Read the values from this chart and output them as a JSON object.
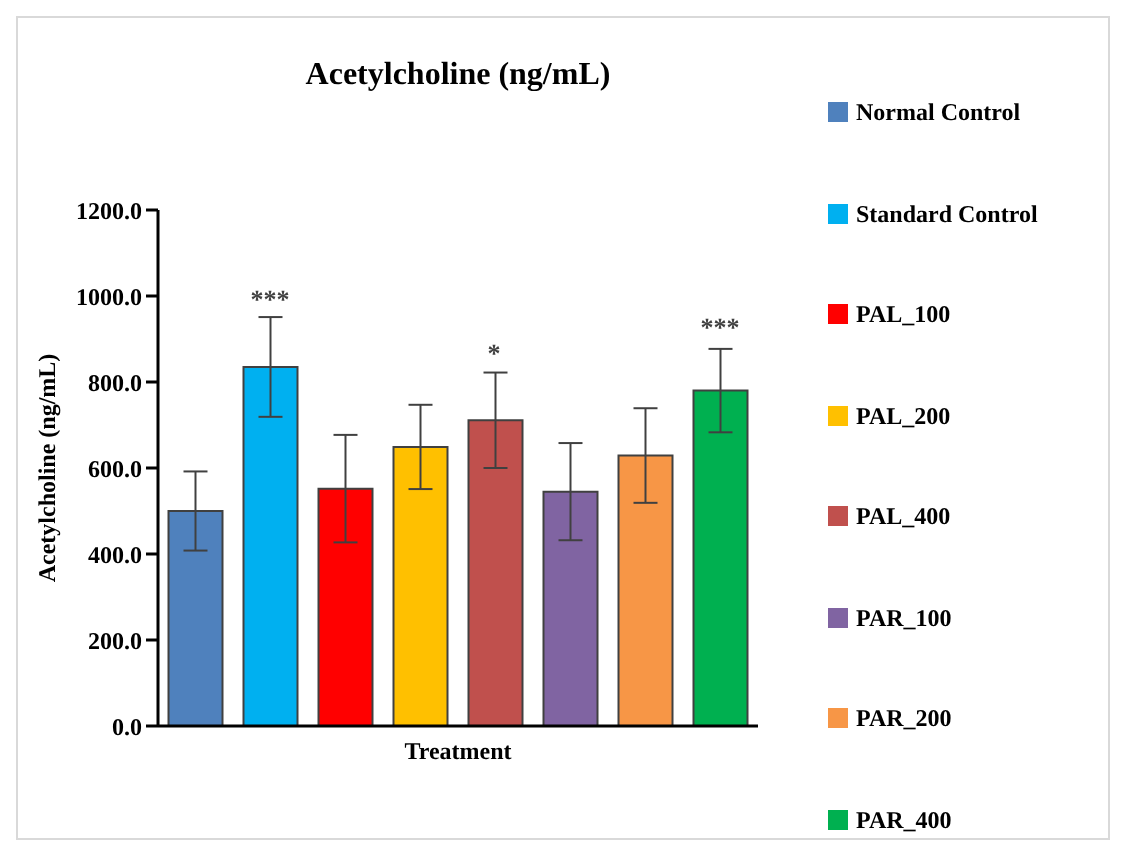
{
  "chart_data": {
    "type": "bar",
    "title": "Acetylcholine  (ng/mL)",
    "xlabel": "Treatment",
    "ylabel": "Acetylcholine (ng/mL)",
    "categories": [
      null,
      null,
      null,
      null,
      null,
      null,
      null,
      null
    ],
    "stacked": true,
    "series": [
      {
        "name": "Normal Control",
        "color": "#4f81bd",
        "values": [
          500,
          null,
          null,
          null,
          null,
          null,
          null,
          null
        ],
        "errors": [
          92,
          null,
          null,
          null,
          null,
          null,
          null,
          null
        ]
      },
      {
        "name": "Standard Control",
        "color": "#00b0f0",
        "values": [
          null,
          835,
          null,
          null,
          null,
          null,
          null,
          null
        ],
        "errors": [
          null,
          116,
          null,
          null,
          null,
          null,
          null,
          null
        ]
      },
      {
        "name": "PAL_100",
        "color": "#ff0000",
        "values": [
          null,
          null,
          552,
          null,
          null,
          null,
          null,
          null
        ],
        "errors": [
          null,
          null,
          125,
          null,
          null,
          null,
          null,
          null
        ]
      },
      {
        "name": "PAL_200",
        "color": "#ffc000",
        "values": [
          null,
          null,
          null,
          649,
          null,
          null,
          null,
          null
        ],
        "errors": [
          null,
          null,
          null,
          98,
          null,
          null,
          null,
          null
        ]
      },
      {
        "name": "PAL_400",
        "color": "#c0504d",
        "values": [
          null,
          null,
          null,
          null,
          711,
          null,
          null,
          null
        ],
        "errors": [
          null,
          null,
          null,
          null,
          111,
          null,
          null,
          null
        ]
      },
      {
        "name": "PAR_100",
        "color": "#8064a2",
        "values": [
          null,
          null,
          null,
          null,
          null,
          545,
          null,
          null
        ],
        "errors": [
          null,
          null,
          null,
          null,
          null,
          113,
          null,
          null
        ]
      },
      {
        "name": "PAR_200",
        "color": "#f79646",
        "values": [
          null,
          null,
          null,
          null,
          null,
          null,
          629,
          null
        ],
        "errors": [
          null,
          null,
          null,
          null,
          null,
          null,
          110,
          null
        ]
      },
      {
        "name": "PAR_400",
        "color": "#00b050",
        "values": [
          null,
          null,
          null,
          null,
          null,
          null,
          null,
          780
        ],
        "errors": [
          null,
          null,
          null,
          null,
          null,
          null,
          null,
          97
        ]
      }
    ],
    "ylim": [
      0,
      1200
    ],
    "yticks": [
      {
        "value": 0,
        "label": "0.0"
      },
      {
        "value": 200,
        "label": "200.0"
      },
      {
        "value": 400,
        "label": "400.0"
      },
      {
        "value": 600,
        "label": "600.0"
      },
      {
        "value": 800,
        "label": "800.0"
      },
      {
        "value": 1000,
        "label": "1000.0"
      },
      {
        "value": 1200,
        "label": "1200.0"
      }
    ],
    "annotations": [
      "***",
      "*",
      "***"
    ],
    "tick_labels": "y",
    "grid": false,
    "legend": "right"
  }
}
